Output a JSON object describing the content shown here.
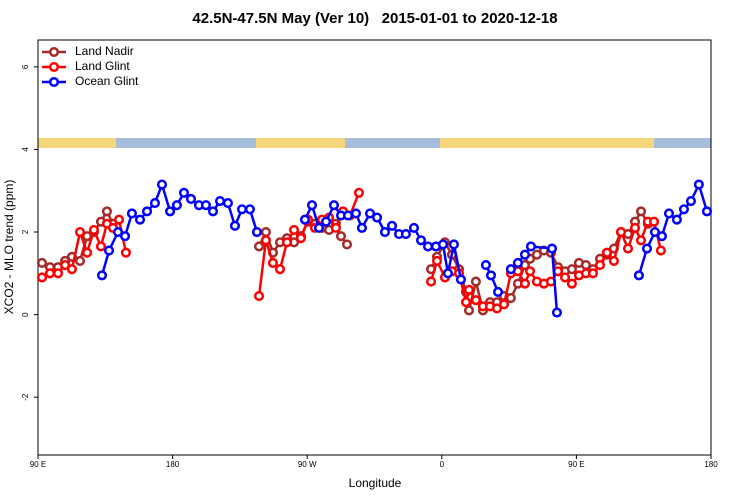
{
  "chart_data": {
    "type": "line",
    "title": "42.5N-47.5N May (Ver 10)   2015-01-01 to 2020-12-18",
    "x_label": "Longitude",
    "y_label": "XCO2 - MLO trend (ppm)",
    "xlim": [
      90,
      540
    ],
    "ylim": [
      -3.4,
      6.65
    ],
    "xticks": [
      {
        "value": 90,
        "label": "90 E"
      },
      180,
      {
        "value": 270,
        "label": "90 W"
      },
      {
        "value": 360,
        "label": "0"
      },
      {
        "value": 450,
        "label": "90 E"
      },
      {
        "value": 540,
        "label": "180"
      }
    ],
    "yticks": [
      -2,
      0,
      2,
      4,
      6
    ],
    "legend": "top-left",
    "series": [
      {
        "name": "Land Nadir",
        "color": "#a52a2a",
        "x": [
          92.7,
          98.0,
          103.4,
          108.1,
          112.7,
          118.1,
          122.8,
          127.4,
          132.1,
          136.1,
          140.1,
          null,
          237.8,
          242.4,
          247.1,
          251.8,
          256.5,
          261.2,
          265.8,
          270.5,
          275.2,
          279.9,
          284.6,
          289.2,
          292.6,
          296.6,
          null,
          352.8,
          356.8,
          362.1,
          366.8,
          371.5,
          376.2,
          378.2,
          382.8,
          387.5,
          392.2,
          396.9,
          401.6,
          406.2,
          410.9,
          415.6,
          419.0,
          423.6,
          428.3,
          433.0,
          437.7,
          442.4,
          447.0,
          451.7,
          456.4,
          461.1,
          465.8,
          470.4,
          475.1,
          479.8,
          484.5,
          489.2,
          493.2,
          497.8
        ],
        "values": [
          1.25,
          1.15,
          1.15,
          1.3,
          1.4,
          1.3,
          1.9,
          2.0,
          2.25,
          2.5,
          2.2,
          null,
          1.65,
          2.0,
          1.5,
          1.75,
          1.85,
          1.75,
          1.9,
          2.25,
          2.2,
          2.1,
          2.05,
          2.2,
          1.9,
          1.7,
          null,
          1.1,
          1.4,
          1.75,
          1.45,
          1.1,
          0.55,
          0.1,
          0.8,
          0.1,
          0.3,
          0.3,
          0.45,
          0.4,
          0.75,
          1.2,
          1.35,
          1.45,
          1.55,
          1.5,
          1.15,
          1.05,
          1.1,
          1.25,
          1.2,
          1.1,
          1.35,
          1.45,
          1.6,
          2.0,
          1.95,
          2.25,
          2.5,
          2.2
        ]
      },
      {
        "name": "Land Glint",
        "color": "#ff0000",
        "x": [
          92.7,
          98.0,
          103.4,
          108.1,
          112.7,
          118.1,
          122.8,
          127.4,
          132.1,
          136.1,
          140.1,
          144.2,
          148.8,
          null,
          237.8,
          242.4,
          247.1,
          251.8,
          256.5,
          261.2,
          265.8,
          270.5,
          275.2,
          279.9,
          284.6,
          289.2,
          293.9,
          298.6,
          304.6,
          null,
          352.8,
          356.8,
          362.1,
          366.8,
          371.5,
          376.2,
          378.2,
          382.8,
          387.5,
          392.2,
          396.9,
          401.6,
          406.2,
          410.9,
          415.6,
          419.0,
          423.6,
          428.3,
          433.0,
          437.7,
          442.4,
          447.0,
          451.7,
          456.4,
          461.1,
          465.8,
          470.4,
          475.1,
          479.8,
          484.5,
          489.2,
          493.2,
          497.8,
          501.9,
          506.5
        ],
        "values": [
          0.9,
          1.0,
          1.0,
          1.2,
          1.1,
          2.0,
          1.5,
          2.05,
          1.65,
          2.2,
          2.1,
          2.3,
          1.5,
          null,
          0.45,
          1.8,
          1.25,
          1.1,
          1.75,
          2.05,
          1.85,
          2.3,
          2.1,
          2.3,
          2.35,
          2.1,
          2.5,
          2.4,
          2.95,
          null,
          0.8,
          1.3,
          0.9,
          1.05,
          1.0,
          0.3,
          0.6,
          0.35,
          0.2,
          0.2,
          0.15,
          0.25,
          1.0,
          1.05,
          0.75,
          1.05,
          0.8,
          0.75,
          0.8,
          1.05,
          0.9,
          0.75,
          0.95,
          1.0,
          1.0,
          1.2,
          1.5,
          1.3,
          2.0,
          1.6,
          2.1,
          1.8,
          2.25,
          2.25,
          1.55
        ]
      },
      {
        "name": "Ocean Glint",
        "color": "#0000ff",
        "x": [
          132.8,
          137.5,
          143.5,
          148.2,
          152.8,
          158.2,
          162.9,
          168.2,
          172.9,
          178.3,
          182.9,
          187.6,
          192.3,
          197.6,
          202.3,
          207.0,
          211.7,
          217.0,
          221.7,
          226.4,
          231.7,
          236.4,
          null,
          268.5,
          273.2,
          277.9,
          282.6,
          287.9,
          292.6,
          297.3,
          302.6,
          306.6,
          312.0,
          316.7,
          322.0,
          326.7,
          331.4,
          336.0,
          341.4,
          346.1,
          350.8,
          356.1,
          360.8,
          364.1,
          368.1,
          372.8,
          null,
          389.5,
          392.9,
          397.6,
          null,
          406.2,
          410.9,
          415.6,
          419.6,
          433.7,
          437.0,
          null,
          491.8,
          497.2,
          502.5,
          507.2,
          511.9,
          517.2,
          521.9,
          526.6,
          531.9,
          537.3
        ],
        "values": [
          0.95,
          1.55,
          2.0,
          1.9,
          2.45,
          2.3,
          2.5,
          2.7,
          3.15,
          2.5,
          2.65,
          2.95,
          2.8,
          2.65,
          2.65,
          2.5,
          2.75,
          2.7,
          2.15,
          2.55,
          2.55,
          2.0,
          null,
          2.3,
          2.65,
          2.1,
          2.25,
          2.65,
          2.4,
          2.4,
          2.45,
          2.1,
          2.45,
          2.35,
          2.0,
          2.15,
          1.95,
          1.95,
          2.1,
          1.8,
          1.65,
          1.65,
          1.7,
          1.0,
          1.7,
          0.85,
          null,
          1.2,
          0.95,
          0.55,
          null,
          1.1,
          1.25,
          1.45,
          1.65,
          1.6,
          0.05,
          null,
          0.95,
          1.6,
          2.0,
          1.9,
          2.45,
          2.3,
          2.55,
          2.75,
          3.15,
          2.5
        ]
      }
    ]
  }
}
